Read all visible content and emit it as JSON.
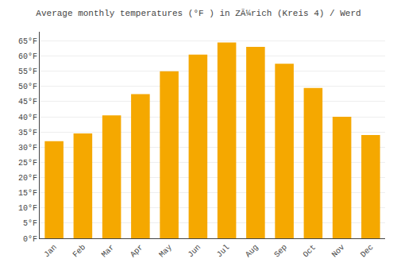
{
  "chart_data": {
    "type": "bar",
    "title": "Average monthly temperatures (°F ) in ZÃ¼rich (Kreis 4) / Werd",
    "categories": [
      "Jan",
      "Feb",
      "Mar",
      "Apr",
      "May",
      "Jun",
      "Jul",
      "Aug",
      "Sep",
      "Oct",
      "Nov",
      "Dec"
    ],
    "values": [
      32,
      34.5,
      40.5,
      47.5,
      55,
      60.5,
      64.5,
      63,
      57.5,
      49.5,
      40,
      34
    ],
    "color": "#F5A800",
    "ylim": [
      0,
      68
    ],
    "yticks": [
      {
        "value": 0,
        "label": "0°F"
      },
      {
        "value": 5,
        "label": "5°F"
      },
      {
        "value": 10,
        "label": "10°F"
      },
      {
        "value": 15,
        "label": "15°F"
      },
      {
        "value": 20,
        "label": "20°F"
      },
      {
        "value": 25,
        "label": "25°F"
      },
      {
        "value": 30,
        "label": "30°F"
      },
      {
        "value": 35,
        "label": "35°F"
      },
      {
        "value": 40,
        "label": "40°F"
      },
      {
        "value": 45,
        "label": "45°F"
      },
      {
        "value": 50,
        "label": "50°F"
      },
      {
        "value": 55,
        "label": "55°F"
      },
      {
        "value": 60,
        "label": "60°F"
      },
      {
        "value": 65,
        "label": "65°F"
      }
    ],
    "grid": true
  }
}
